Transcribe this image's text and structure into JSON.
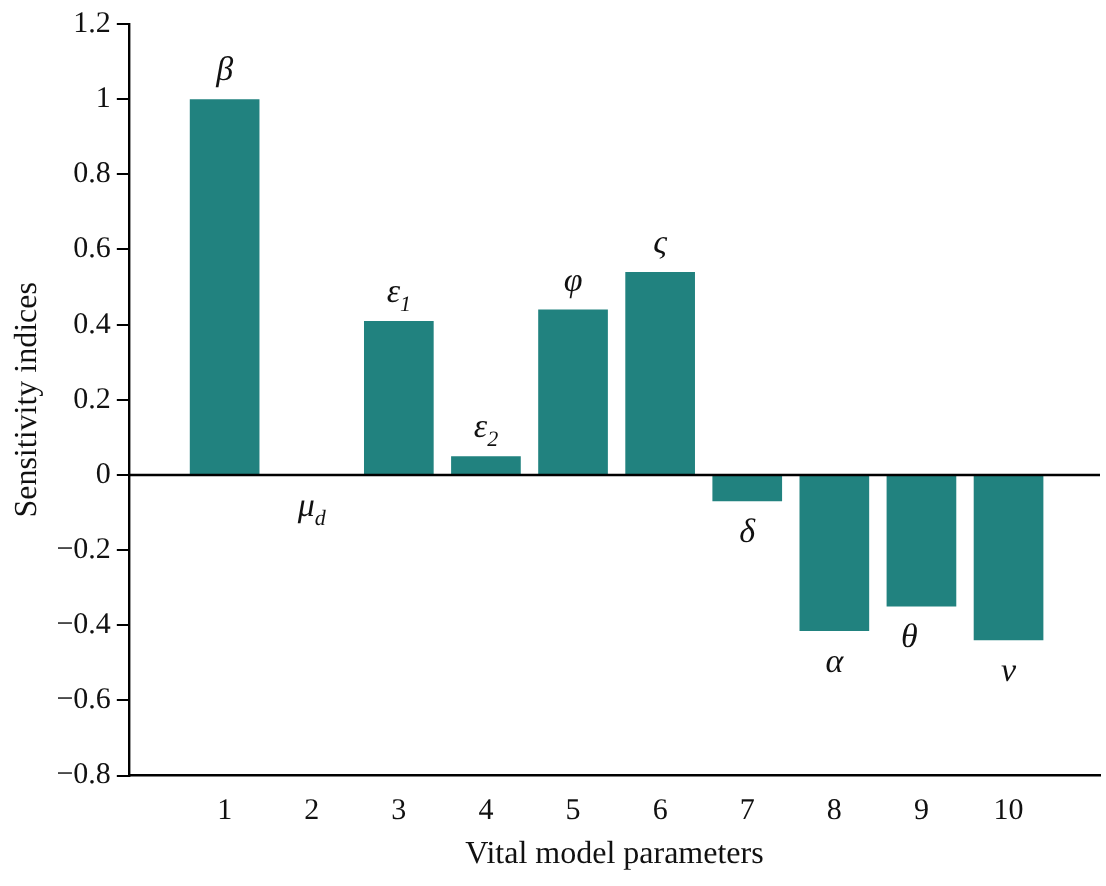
{
  "chart_data": {
    "type": "bar",
    "xlabel": "Vital model parameters",
    "ylabel": "Sensitivity indices",
    "x": [
      1,
      2,
      3,
      4,
      5,
      6,
      7,
      8,
      9,
      10
    ],
    "values": [
      1.0,
      0,
      0.41,
      0.05,
      0.44,
      0.54,
      -0.07,
      -0.415,
      -0.35,
      -0.44
    ],
    "color": "#21827f",
    "xlim": [
      -0.1,
      11.05
    ],
    "xticks": [
      1,
      2,
      3,
      4,
      5,
      6,
      7,
      8,
      9,
      10
    ],
    "ylim": [
      -0.8,
      1.2
    ],
    "yticks": [
      {
        "value": -0.8,
        "label": "−0.8"
      },
      {
        "value": -0.6,
        "label": "−0.6"
      },
      {
        "value": -0.4,
        "label": "−0.4"
      },
      {
        "value": -0.2,
        "label": "−0.2"
      },
      0,
      0.2,
      0.4,
      0.6,
      0.8,
      1,
      1.2
    ],
    "grid": false,
    "legend": false,
    "ref_lines": [
      {
        "axis": "y",
        "value": 0
      }
    ],
    "annotations": [
      {
        "text": "β",
        "x": 1,
        "y": 1.0
      },
      {
        "text": "μ$_{d}$",
        "x": 2,
        "y": 0
      },
      {
        "text": "ε$_{1}$",
        "x": 3,
        "y": 0.41
      },
      {
        "text": "ε$_{2}$",
        "x": 4,
        "y": 0.05
      },
      {
        "text": "φ",
        "x": 5,
        "y": 0.44
      },
      {
        "text": "ς",
        "x": 6,
        "y": 0.54
      },
      {
        "text": "δ",
        "x": 7,
        "y": -0.07
      },
      {
        "text": "α",
        "x": 8,
        "y": -0.415
      },
      {
        "text": "θ",
        "x": 9,
        "y": -0.35
      },
      {
        "text": "ν",
        "x": 10,
        "y": -0.44
      }
    ]
  }
}
